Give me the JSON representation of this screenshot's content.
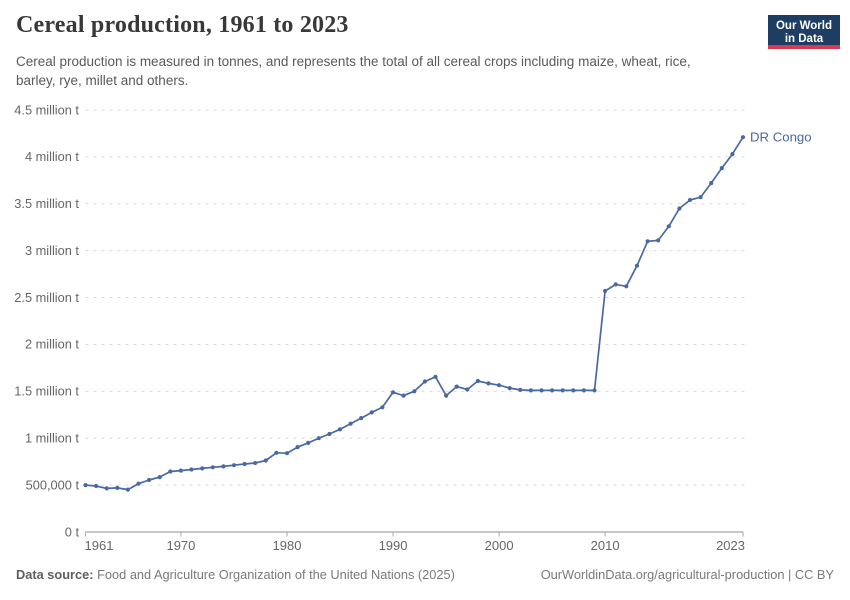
{
  "header": {
    "title": "Cereal production, 1961 to 2023",
    "subtitle": "Cereal production is measured in tonnes, and represents the total of all cereal crops including maize, wheat, rice, barley, rye, millet and others.",
    "logo": {
      "line1": "Our World",
      "line2": "in Data",
      "bg_color": "#1d3d63",
      "bar_color": "#d93a4e"
    }
  },
  "chart_data": {
    "type": "line",
    "title": "Cereal production, 1961 to 2023",
    "unit": "tonnes",
    "xlabel": "",
    "ylabel": "",
    "xlim": [
      1961,
      2023
    ],
    "ylim": [
      0,
      4500000
    ],
    "grid": "horizontal-dashed",
    "legend_position": "label-at-line-end",
    "colors": {
      "line": "#4a69a0",
      "grid": "#d9d9d9",
      "axis": "#8f8f8f",
      "tick_text": "#666666"
    },
    "x": [
      1961,
      1962,
      1963,
      1964,
      1965,
      1966,
      1967,
      1968,
      1969,
      1970,
      1971,
      1972,
      1973,
      1974,
      1975,
      1976,
      1977,
      1978,
      1979,
      1980,
      1981,
      1982,
      1983,
      1984,
      1985,
      1986,
      1987,
      1988,
      1989,
      1990,
      1991,
      1992,
      1993,
      1994,
      1995,
      1996,
      1997,
      1998,
      1999,
      2000,
      2001,
      2002,
      2003,
      2004,
      2005,
      2006,
      2007,
      2008,
      2009,
      2010,
      2011,
      2012,
      2013,
      2014,
      2015,
      2016,
      2017,
      2018,
      2019,
      2020,
      2021,
      2022,
      2023
    ],
    "series": [
      {
        "name": "DR Congo",
        "color": "#4a69a0",
        "values": [
          500000,
          490000,
          465000,
          470000,
          452000,
          515000,
          555000,
          585000,
          645000,
          655000,
          667000,
          678000,
          690000,
          700000,
          712000,
          725000,
          736000,
          762000,
          845000,
          840000,
          905000,
          950000,
          1000000,
          1045000,
          1095000,
          1155000,
          1215000,
          1275000,
          1330000,
          1490000,
          1455000,
          1500000,
          1605000,
          1655000,
          1455000,
          1550000,
          1520000,
          1610000,
          1585000,
          1565000,
          1535000,
          1515000,
          1510000,
          1510000,
          1510000,
          1510000,
          1510000,
          1510000,
          1510000,
          2570000,
          2640000,
          2620000,
          2840000,
          3100000,
          3110000,
          3260000,
          3450000,
          3540000,
          3570000,
          3720000,
          3880000,
          4030000,
          4210000
        ]
      }
    ],
    "x_ticks": [
      {
        "year": 1961,
        "label": "1961",
        "align": "start"
      },
      {
        "year": 1970,
        "label": "1970",
        "align": "middle"
      },
      {
        "year": 1980,
        "label": "1980",
        "align": "middle"
      },
      {
        "year": 1990,
        "label": "1990",
        "align": "middle"
      },
      {
        "year": 2000,
        "label": "2000",
        "align": "middle"
      },
      {
        "year": 2010,
        "label": "2010",
        "align": "middle"
      },
      {
        "year": 2023,
        "label": "2023",
        "align": "end"
      }
    ],
    "y_ticks": [
      {
        "value": 0,
        "label": "0 t"
      },
      {
        "value": 500000,
        "label": "500,000 t"
      },
      {
        "value": 1000000,
        "label": "1 million t"
      },
      {
        "value": 1500000,
        "label": "1.5 million t"
      },
      {
        "value": 2000000,
        "label": "2 million t"
      },
      {
        "value": 2500000,
        "label": "2.5 million t"
      },
      {
        "value": 3000000,
        "label": "3 million t"
      },
      {
        "value": 3500000,
        "label": "3.5 million t"
      },
      {
        "value": 4000000,
        "label": "4 million t"
      },
      {
        "value": 4500000,
        "label": "4.5 million t"
      }
    ]
  },
  "footer": {
    "source_label": "Data source:",
    "source_text": "Food and Agriculture Organization of the United Nations (2025)",
    "right_text": "OurWorldinData.org/agricultural-production | CC BY"
  }
}
